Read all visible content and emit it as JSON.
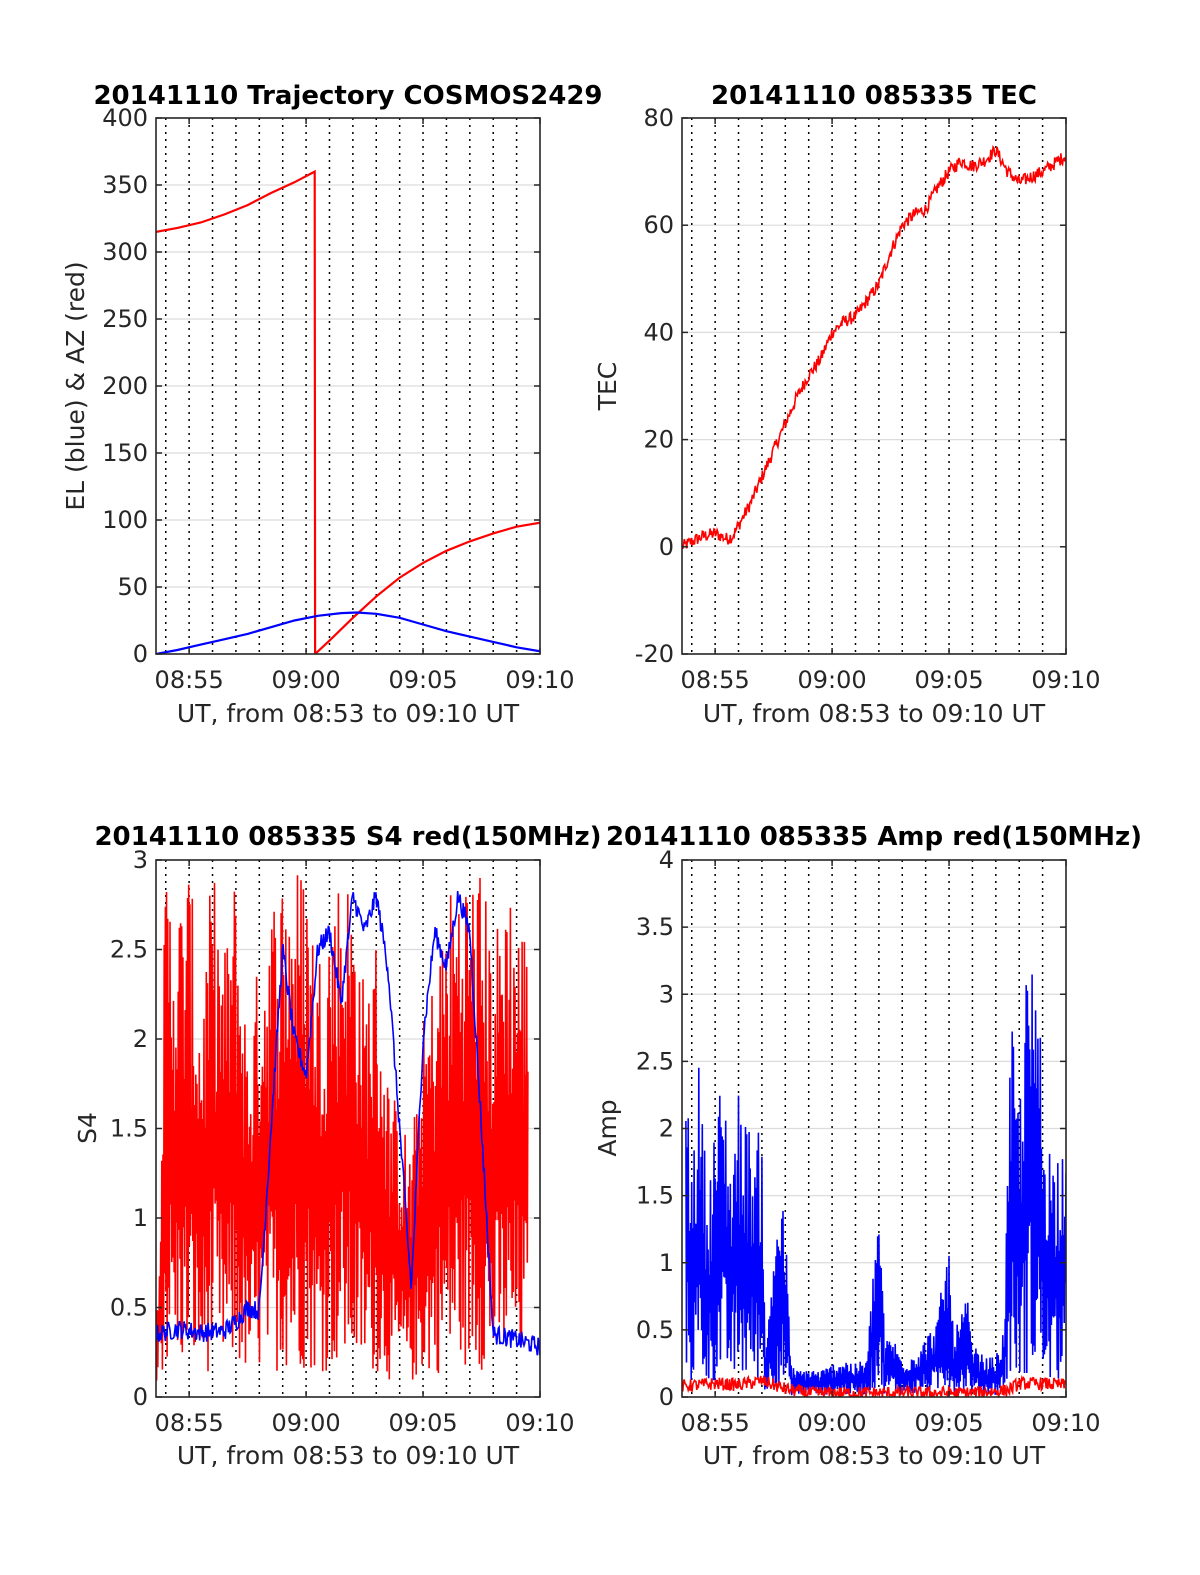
{
  "colors": {
    "red": "#ff0000",
    "blue": "#0000ff",
    "grid": "#dcdcdc",
    "axis": "#262626"
  },
  "chart_data": [
    {
      "id": "trajectory",
      "type": "line",
      "title": "20141110 Trajectory COSMOS2429",
      "xlabel": "UT, from 08:53 to 09:10 UT",
      "ylabel": "EL (blue) & AZ (red)",
      "x_unit": "UT",
      "xlim": [
        "08:53:35",
        "09:10:00"
      ],
      "ylim": [
        0,
        400
      ],
      "xticks": [
        "08:55",
        "09:00",
        "09:05",
        "09:10"
      ],
      "yticks": [
        0,
        50,
        100,
        150,
        200,
        250,
        300,
        350,
        400
      ],
      "vertical_dotted_minutes": [
        "08:54",
        "08:55",
        "08:56",
        "08:57",
        "08:58",
        "08:59",
        "09:00",
        "09:01",
        "09:02",
        "09:03",
        "09:04",
        "09:05",
        "09:06",
        "09:07",
        "09:08",
        "09:09"
      ],
      "grid": "horizontal",
      "series": [
        {
          "color": "#ff0000",
          "style": "line",
          "points": [
            [
              "08:53:35",
              315
            ],
            [
              "08:54:30",
              318
            ],
            [
              "08:55:30",
              322
            ],
            [
              "08:56:30",
              328
            ],
            [
              "08:57:30",
              335
            ],
            [
              "08:58:30",
              344
            ],
            [
              "08:59:30",
              352
            ],
            [
              "09:00:22",
              360
            ],
            [
              "09:00:23",
              0
            ],
            [
              "09:01:00",
              10
            ],
            [
              "09:02:00",
              27
            ],
            [
              "09:03:00",
              43
            ],
            [
              "09:04:00",
              57
            ],
            [
              "09:05:00",
              68
            ],
            [
              "09:06:00",
              77
            ],
            [
              "09:07:00",
              84
            ],
            [
              "09:08:00",
              90
            ],
            [
              "09:09:00",
              95
            ],
            [
              "09:10:00",
              98
            ]
          ]
        },
        {
          "color": "#0000ff",
          "style": "line",
          "points": [
            [
              "08:53:35",
              0
            ],
            [
              "08:54:30",
              3
            ],
            [
              "08:55:30",
              7
            ],
            [
              "08:56:30",
              11
            ],
            [
              "08:57:30",
              15
            ],
            [
              "08:58:30",
              20
            ],
            [
              "08:59:30",
              25
            ],
            [
              "09:00:30",
              28.5
            ],
            [
              "09:01:30",
              30.5
            ],
            [
              "09:02:10",
              31
            ],
            [
              "09:03:00",
              30
            ],
            [
              "09:04:00",
              27
            ],
            [
              "09:05:00",
              22
            ],
            [
              "09:06:00",
              17
            ],
            [
              "09:07:00",
              13
            ],
            [
              "09:08:00",
              9
            ],
            [
              "09:09:00",
              5
            ],
            [
              "09:10:00",
              2
            ]
          ]
        }
      ]
    },
    {
      "id": "tec",
      "type": "line",
      "title": "20141110 085335 TEC",
      "xlabel": "UT, from 08:53 to 09:10 UT",
      "ylabel": "TEC",
      "x_unit": "UT",
      "xlim": [
        "08:53:35",
        "09:10:00"
      ],
      "ylim": [
        -20,
        80
      ],
      "xticks": [
        "08:55",
        "09:00",
        "09:05",
        "09:10"
      ],
      "yticks": [
        -20,
        0,
        20,
        40,
        60,
        80
      ],
      "vertical_dotted_minutes": [
        "08:54",
        "08:55",
        "08:56",
        "08:57",
        "08:58",
        "08:59",
        "09:00",
        "09:01",
        "09:02",
        "09:03",
        "09:04",
        "09:05",
        "09:06",
        "09:07",
        "09:08",
        "09:09"
      ],
      "grid": "horizontal",
      "series": [
        {
          "color": "#ff0000",
          "style": "noisy-line",
          "points": [
            [
              "08:53:35",
              0
            ],
            [
              "08:54:00",
              1
            ],
            [
              "08:54:30",
              2
            ],
            [
              "08:55:00",
              2.5
            ],
            [
              "08:55:30",
              1.5
            ],
            [
              "08:55:45",
              2
            ],
            [
              "08:56:00",
              4
            ],
            [
              "08:56:30",
              8
            ],
            [
              "08:57:00",
              13
            ],
            [
              "08:57:30",
              18
            ],
            [
              "08:58:00",
              23
            ],
            [
              "08:58:30",
              28
            ],
            [
              "08:59:00",
              32
            ],
            [
              "08:59:30",
              35
            ],
            [
              "09:00:00",
              40
            ],
            [
              "09:00:30",
              42
            ],
            [
              "09:01:00",
              43
            ],
            [
              "09:01:30",
              46
            ],
            [
              "09:02:00",
              49
            ],
            [
              "09:02:30",
              55
            ],
            [
              "09:03:00",
              60
            ],
            [
              "09:03:30",
              62
            ],
            [
              "09:04:00",
              63
            ],
            [
              "09:04:30",
              67
            ],
            [
              "09:05:00",
              70
            ],
            [
              "09:05:30",
              72
            ],
            [
              "09:06:00",
              71
            ],
            [
              "09:06:30",
              72
            ],
            [
              "09:07:00",
              74
            ],
            [
              "09:07:30",
              70
            ],
            [
              "09:08:00",
              68
            ],
            [
              "09:08:30",
              69
            ],
            [
              "09:09:00",
              70
            ],
            [
              "09:10:00",
              73
            ]
          ]
        }
      ]
    },
    {
      "id": "s4",
      "type": "line",
      "title": "20141110 085335 S4 red(150MHz)",
      "xlabel": "UT, from 08:53 to 09:10 UT",
      "ylabel": "S4",
      "x_unit": "UT",
      "xlim": [
        "08:53:35",
        "09:10:00"
      ],
      "ylim": [
        0,
        3
      ],
      "xticks": [
        "08:55",
        "09:00",
        "09:05",
        "09:10"
      ],
      "yticks": [
        0,
        0.5,
        1,
        1.5,
        2,
        2.5,
        3
      ],
      "vertical_dotted_minutes": [
        "08:54",
        "08:55",
        "08:56",
        "08:57",
        "08:58",
        "08:59",
        "09:00",
        "09:01",
        "09:02",
        "09:03",
        "09:04",
        "09:05",
        "09:06",
        "09:07",
        "09:08",
        "09:09"
      ],
      "grid": "horizontal",
      "series": [
        {
          "color": "#ff0000",
          "style": "spiky",
          "points": [
            [
              "08:53:35",
              0.2
            ],
            [
              "08:54:00",
              3
            ],
            [
              "08:54:30",
              2.8
            ],
            [
              "08:55:00",
              3
            ],
            [
              "08:55:30",
              2.2
            ],
            [
              "08:56:00",
              3
            ],
            [
              "08:56:30",
              2.5
            ],
            [
              "08:57:00",
              3
            ],
            [
              "08:57:30",
              2.0
            ],
            [
              "08:58:00",
              2.5
            ],
            [
              "08:58:30",
              2.8
            ],
            [
              "08:59:00",
              3
            ],
            [
              "08:59:30",
              3
            ],
            [
              "09:00:00",
              3
            ],
            [
              "09:00:30",
              2.5
            ],
            [
              "09:01:00",
              2.8
            ],
            [
              "09:01:30",
              3
            ],
            [
              "09:02:00",
              2.9
            ],
            [
              "09:02:30",
              2.3
            ],
            [
              "09:03:00",
              2.6
            ],
            [
              "09:03:30",
              1.8
            ],
            [
              "09:04:00",
              1.6
            ],
            [
              "09:04:30",
              1.4
            ],
            [
              "09:05:00",
              2.1
            ],
            [
              "09:05:30",
              2.4
            ],
            [
              "09:06:00",
              2.8
            ],
            [
              "09:06:30",
              3
            ],
            [
              "09:07:00",
              3
            ],
            [
              "09:07:30",
              3
            ],
            [
              "09:08:00",
              2.5
            ],
            [
              "09:08:30",
              3
            ],
            [
              "09:09:00",
              2.8
            ],
            [
              "09:09:30",
              2.6
            ]
          ]
        },
        {
          "color": "#0000ff",
          "style": "noisy-line",
          "points": [
            [
              "08:53:35",
              0.35
            ],
            [
              "08:54:30",
              0.38
            ],
            [
              "08:55:30",
              0.36
            ],
            [
              "08:56:30",
              0.37
            ],
            [
              "08:57:00",
              0.42
            ],
            [
              "08:57:30",
              0.5
            ],
            [
              "08:58:00",
              0.48
            ],
            [
              "08:58:30",
              1.5
            ],
            [
              "08:59:00",
              2.5
            ],
            [
              "08:59:30",
              2.0
            ],
            [
              "09:00:00",
              1.8
            ],
            [
              "09:00:30",
              2.5
            ],
            [
              "09:01:00",
              2.6
            ],
            [
              "09:01:30",
              2.2
            ],
            [
              "09:02:00",
              2.8
            ],
            [
              "09:02:30",
              2.6
            ],
            [
              "09:03:00",
              2.8
            ],
            [
              "09:03:30",
              2.4
            ],
            [
              "09:04:00",
              1.5
            ],
            [
              "09:04:30",
              0.6
            ],
            [
              "09:05:00",
              2.0
            ],
            [
              "09:05:30",
              2.6
            ],
            [
              "09:06:00",
              2.4
            ],
            [
              "09:06:30",
              2.8
            ],
            [
              "09:07:00",
              2.6
            ],
            [
              "09:07:30",
              1.5
            ],
            [
              "09:08:00",
              0.35
            ],
            [
              "09:09:00",
              0.32
            ],
            [
              "09:10:00",
              0.28
            ]
          ]
        }
      ]
    },
    {
      "id": "amp",
      "type": "line",
      "title": "20141110 085335 Amp red(150MHz)",
      "xlabel": "UT, from 08:53 to 09:10 UT",
      "ylabel": "Amp",
      "x_unit": "UT",
      "xlim": [
        "08:53:35",
        "09:10:00"
      ],
      "ylim": [
        0,
        4
      ],
      "xticks": [
        "08:55",
        "09:00",
        "09:05",
        "09:10"
      ],
      "yticks": [
        0,
        0.5,
        1,
        1.5,
        2,
        2.5,
        3,
        3.5,
        4
      ],
      "vertical_dotted_minutes": [
        "08:54",
        "08:55",
        "08:56",
        "08:57",
        "08:58",
        "08:59",
        "09:00",
        "09:01",
        "09:02",
        "09:03",
        "09:04",
        "09:05",
        "09:06",
        "09:07",
        "09:08",
        "09:09"
      ],
      "grid": "horizontal",
      "series": [
        {
          "color": "#0000ff",
          "style": "spiky",
          "points": [
            [
              "08:53:45",
              2.38
            ],
            [
              "08:54:00",
              1.8
            ],
            [
              "08:54:20",
              2.57
            ],
            [
              "08:54:40",
              1.5
            ],
            [
              "08:55:00",
              2.1
            ],
            [
              "08:55:20",
              2.46
            ],
            [
              "08:55:40",
              1.8
            ],
            [
              "08:56:00",
              2.3
            ],
            [
              "08:56:20",
              2.1
            ],
            [
              "08:56:40",
              1.9
            ],
            [
              "08:57:00",
              2.05
            ],
            [
              "08:57:10",
              0.3
            ],
            [
              "08:57:30",
              1.2
            ],
            [
              "08:57:45",
              1.6
            ],
            [
              "08:58:00",
              1.3
            ],
            [
              "08:58:15",
              0.25
            ],
            [
              "08:58:30",
              0.2
            ],
            [
              "08:59:00",
              0.22
            ],
            [
              "08:59:30",
              0.2
            ],
            [
              "09:00:00",
              0.25
            ],
            [
              "09:00:30",
              0.3
            ],
            [
              "09:01:00",
              0.25
            ],
            [
              "09:01:30",
              0.3
            ],
            [
              "09:02:00",
              1.58
            ],
            [
              "09:02:15",
              0.4
            ],
            [
              "09:02:30",
              0.5
            ],
            [
              "09:03:00",
              0.3
            ],
            [
              "09:03:30",
              0.35
            ],
            [
              "09:04:00",
              0.45
            ],
            [
              "09:04:30",
              0.6
            ],
            [
              "09:04:50",
              1.0
            ],
            [
              "09:05:00",
              1.18
            ],
            [
              "09:05:10",
              0.5
            ],
            [
              "09:05:30",
              0.6
            ],
            [
              "09:05:45",
              0.78
            ],
            [
              "09:06:00",
              0.4
            ],
            [
              "09:06:30",
              0.3
            ],
            [
              "09:07:00",
              0.3
            ],
            [
              "09:07:20",
              0.5
            ],
            [
              "09:07:40",
              2.85
            ],
            [
              "09:08:00",
              2.2
            ],
            [
              "09:08:15",
              3.0
            ],
            [
              "09:08:25",
              3.55
            ],
            [
              "09:08:40",
              2.9
            ],
            [
              "09:08:50",
              3.25
            ],
            [
              "09:09:00",
              2.2
            ],
            [
              "09:09:30",
              1.8
            ],
            [
              "09:10:00",
              2.2
            ]
          ]
        },
        {
          "color": "#ff0000",
          "style": "noisy-line",
          "points": [
            [
              "08:53:35",
              0.08
            ],
            [
              "08:55:00",
              0.1
            ],
            [
              "08:56:00",
              0.09
            ],
            [
              "08:57:00",
              0.12
            ],
            [
              "08:58:00",
              0.06
            ],
            [
              "08:59:00",
              0.03
            ],
            [
              "09:00:00",
              0.03
            ],
            [
              "09:02:00",
              0.03
            ],
            [
              "09:04:00",
              0.03
            ],
            [
              "09:06:00",
              0.03
            ],
            [
              "09:07:30",
              0.05
            ],
            [
              "09:08:00",
              0.1
            ],
            [
              "09:09:00",
              0.1
            ],
            [
              "09:10:00",
              0.09
            ]
          ]
        }
      ]
    }
  ]
}
